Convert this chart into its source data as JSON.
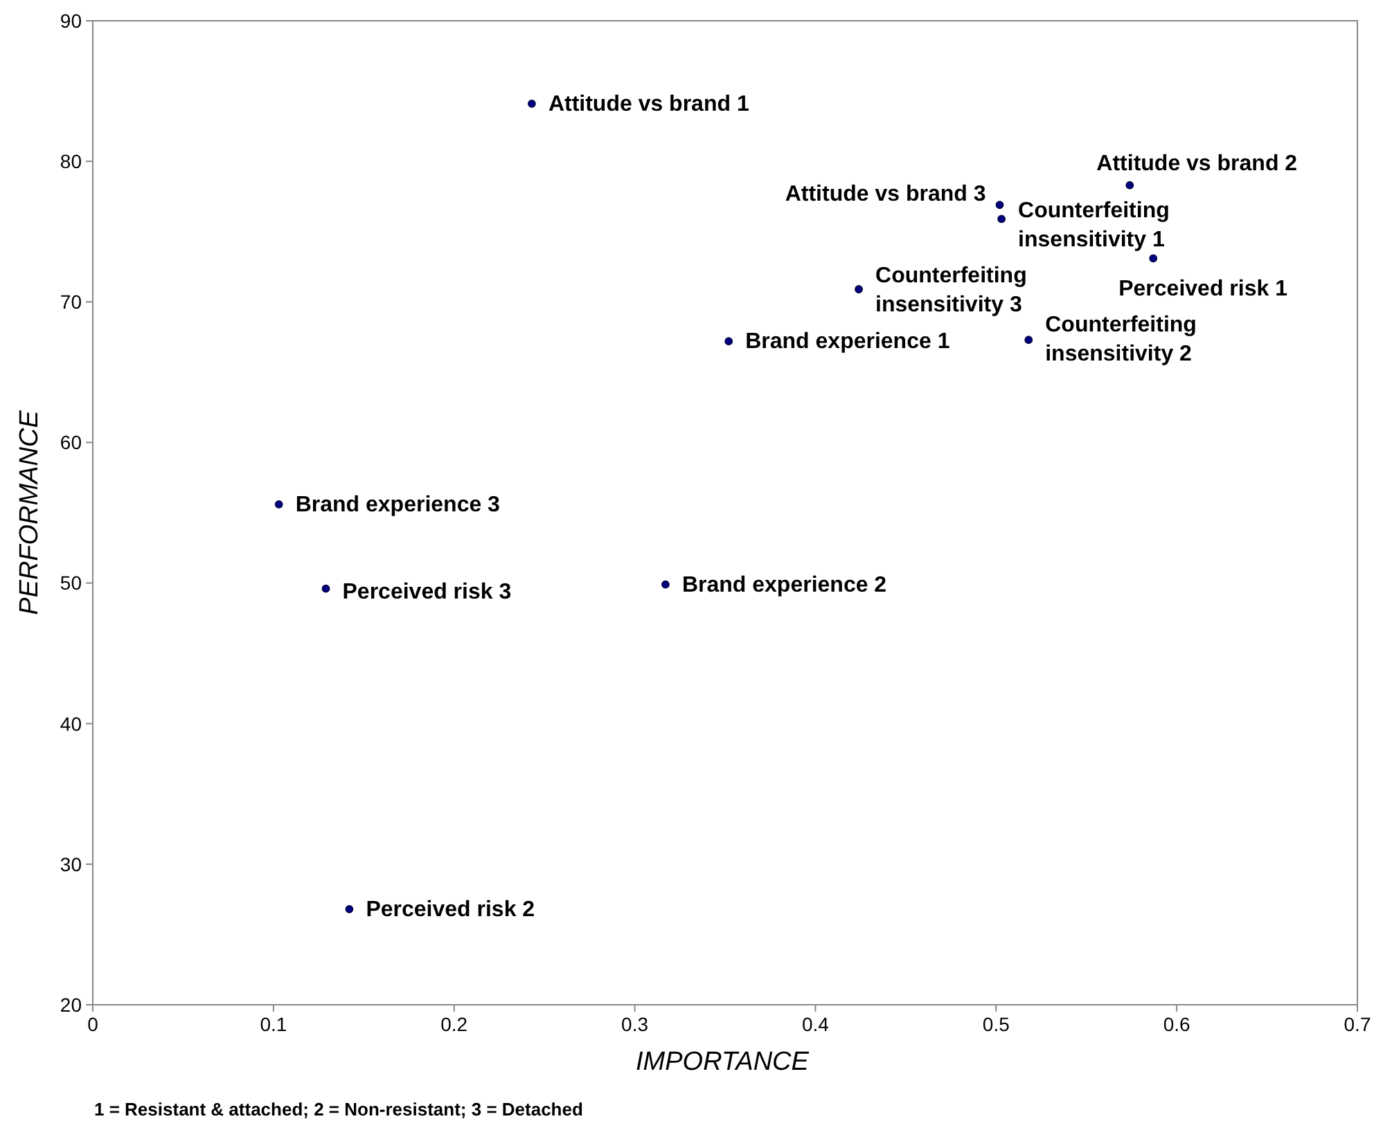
{
  "chart_data": {
    "type": "scatter",
    "xlabel": "IMPORTANCE",
    "ylabel": "PERFORMANCE",
    "xlim": [
      0,
      0.7
    ],
    "xticks": [
      0,
      0.1,
      0.2,
      0.3,
      0.4,
      0.5,
      0.6,
      0.7
    ],
    "ylim": [
      20,
      90
    ],
    "yticks": [
      20,
      30,
      40,
      50,
      60,
      70,
      80,
      90
    ],
    "marker": "circle",
    "series": [
      {
        "color": "#00007f",
        "x": [
          0.243,
          0.574,
          0.502,
          0.503,
          0.587,
          0.424,
          0.352,
          0.518,
          0.103,
          0.129,
          0.317,
          0.142
        ],
        "values": [
          84.1,
          78.3,
          76.9,
          75.9,
          73.1,
          70.9,
          67.2,
          67.3,
          55.6,
          49.6,
          49.9,
          26.8
        ]
      }
    ],
    "annotations": [
      {
        "text": "Attitude vs brand 1",
        "x": 0.243,
        "y": 84.1
      },
      {
        "text": "Attitude vs brand 2",
        "x": 0.574,
        "y": 78.3
      },
      {
        "text": "Attitude vs brand 3",
        "x": 0.502,
        "y": 76.9
      },
      {
        "text": "Counterfeiting insensitivity 1",
        "x": 0.503,
        "y": 75.9
      },
      {
        "text": "Perceived risk 1",
        "x": 0.587,
        "y": 73.1
      },
      {
        "text": "Counterfeiting insensitivity 3",
        "x": 0.424,
        "y": 70.9
      },
      {
        "text": "Brand experience 1",
        "x": 0.352,
        "y": 67.2
      },
      {
        "text": "Counterfeiting insensitivity 2",
        "x": 0.518,
        "y": 67.3
      },
      {
        "text": "Brand experience 3",
        "x": 0.103,
        "y": 55.6
      },
      {
        "text": "Perceived risk 3",
        "x": 0.129,
        "y": 49.6
      },
      {
        "text": "Brand experience 2",
        "x": 0.317,
        "y": 49.9
      },
      {
        "text": "Perceived risk 2",
        "x": 0.142,
        "y": 26.8
      },
      "1 = Resistant & attached; 2 = Non-resistant; 3 = Detached"
    ]
  }
}
